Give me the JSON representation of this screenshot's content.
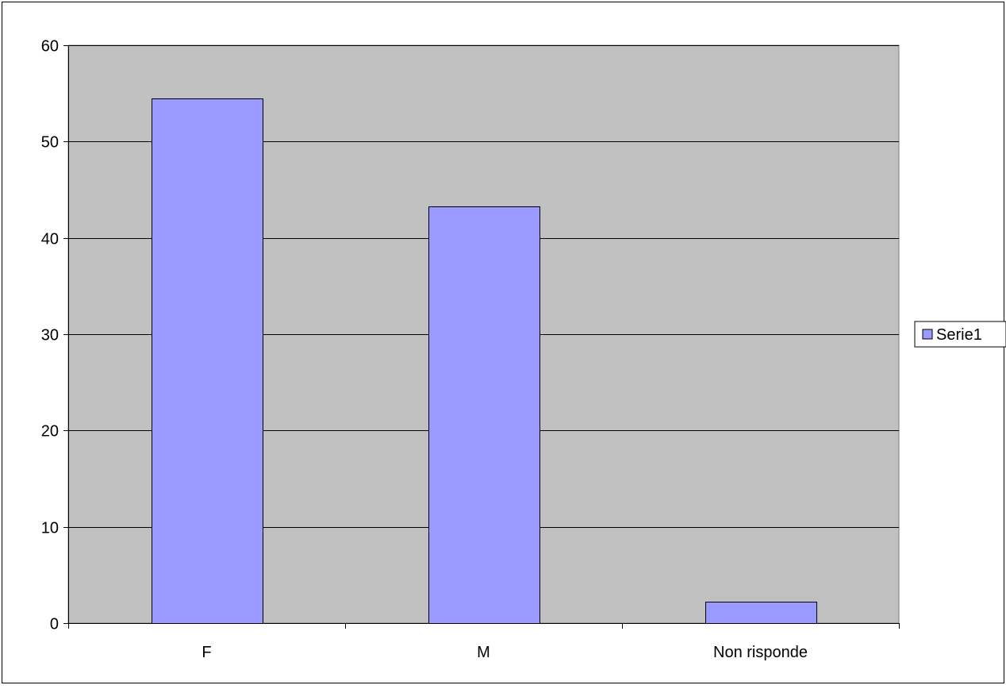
{
  "chart_data": {
    "type": "bar",
    "title": "",
    "xlabel": "",
    "ylabel": "",
    "categories": [
      "F",
      "M",
      "Non risponde"
    ],
    "series": [
      {
        "name": "Serie1",
        "values": [
          54.5,
          43.3,
          2.2
        ]
      }
    ],
    "ylim": [
      0,
      60
    ],
    "yticks": [
      0,
      10,
      20,
      30,
      40,
      50,
      60
    ],
    "ytick_labels": [
      "0",
      "10",
      "20",
      "30",
      "40",
      "50",
      "60"
    ],
    "grid": true,
    "legend": "right",
    "colors": {
      "plot_background": "#c0c0c0",
      "bar_fill": "#9999ff",
      "bar_stroke": "#000000",
      "gridline": "#000000",
      "frame": "#000000"
    }
  }
}
